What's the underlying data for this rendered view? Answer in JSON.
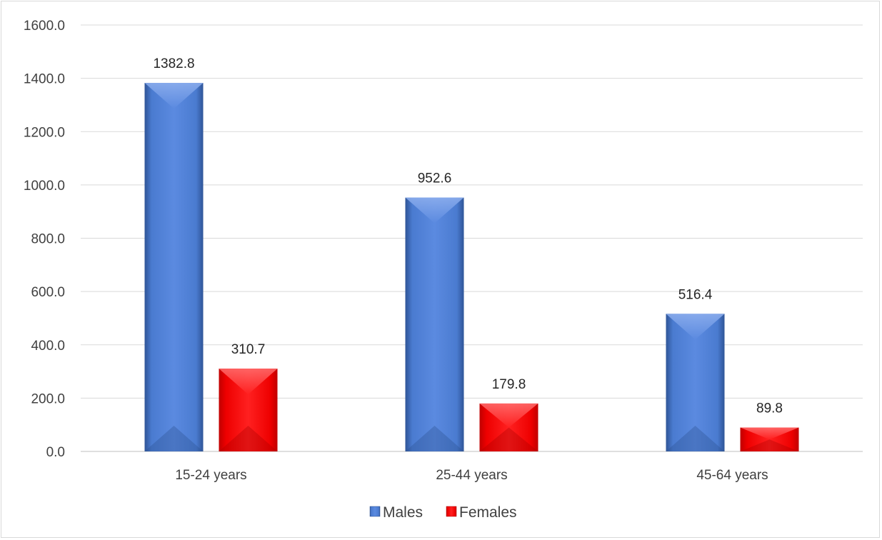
{
  "chart_data": {
    "type": "bar",
    "title": "",
    "xlabel": "",
    "ylabel": "",
    "ylim": [
      0,
      1600
    ],
    "yticks": [
      "0.0",
      "200.0",
      "400.0",
      "600.0",
      "800.0",
      "1000.0",
      "1200.0",
      "1400.0",
      "1600.0"
    ],
    "grid": true,
    "legend_position": "bottom",
    "categories": [
      "15-24 years",
      "25-44 years",
      "45-64 years"
    ],
    "series": [
      {
        "name": "Males",
        "values": [
          1382.8,
          952.6,
          516.4
        ],
        "labels": [
          "1382.8",
          "952.6",
          "516.4"
        ],
        "color": "#4472C4"
      },
      {
        "name": "Females",
        "values": [
          310.7,
          179.8,
          89.8
        ],
        "labels": [
          "310.7",
          "179.8",
          "89.8"
        ],
        "color": "#FF0000"
      }
    ]
  }
}
